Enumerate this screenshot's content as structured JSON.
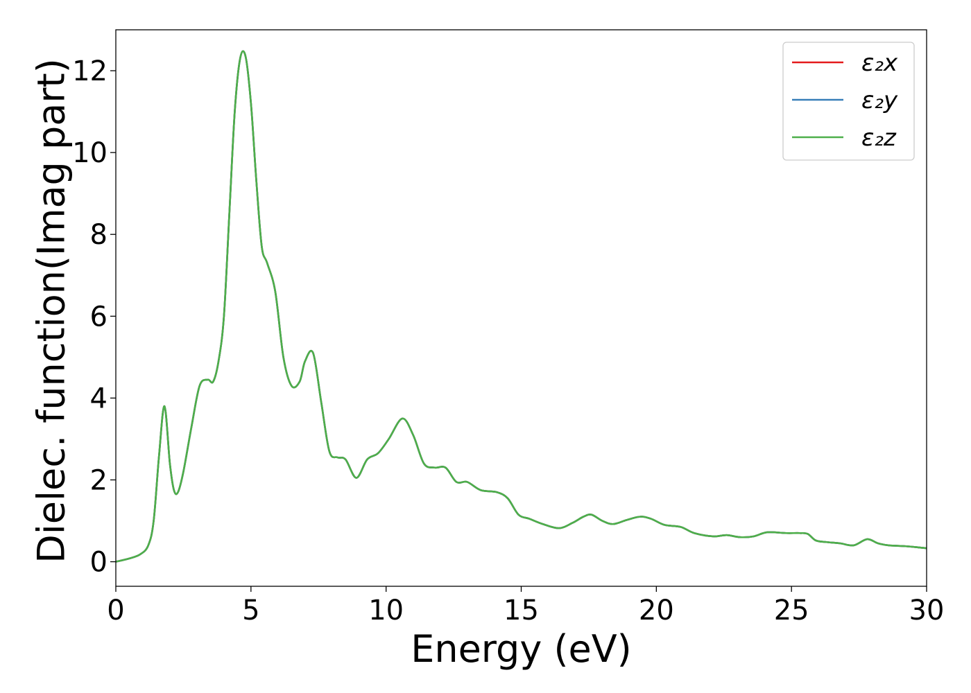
{
  "chart_data": {
    "type": "line",
    "title": "",
    "xlabel": "Energy (eV)",
    "ylabel": "Dielec. function(Imag part)",
    "xlim": [
      0,
      30
    ],
    "ylim": [
      -0.6,
      13.0
    ],
    "xticks": [
      0,
      5,
      10,
      15,
      20,
      25,
      30
    ],
    "xtick_labels": [
      "0",
      "5",
      "10",
      "15",
      "20",
      "25",
      "30"
    ],
    "yticks": [
      0,
      2,
      4,
      6,
      8,
      10,
      12
    ],
    "ytick_labels": [
      "0",
      "2",
      "4",
      "6",
      "8",
      "10",
      "12"
    ],
    "grid": false,
    "legend_position": "top-right",
    "x": [
      0,
      0.5,
      0.9,
      1.2,
      1.4,
      1.6,
      1.8,
      2.0,
      2.15,
      2.3,
      2.5,
      2.8,
      3.1,
      3.4,
      3.6,
      3.8,
      4.0,
      4.2,
      4.4,
      4.6,
      4.8,
      5.0,
      5.2,
      5.4,
      5.6,
      5.9,
      6.2,
      6.5,
      6.8,
      7.0,
      7.3,
      7.6,
      7.9,
      8.2,
      8.5,
      8.9,
      9.3,
      9.7,
      10.1,
      10.6,
      11.0,
      11.4,
      11.8,
      12.2,
      12.6,
      13.0,
      13.5,
      14.1,
      14.5,
      14.9,
      15.3,
      15.8,
      16.4,
      16.9,
      17.3,
      17.6,
      18.0,
      18.4,
      18.9,
      19.4,
      19.8,
      20.3,
      20.9,
      21.4,
      22.1,
      22.6,
      23.1,
      23.6,
      24.1,
      24.8,
      25.3,
      25.6,
      25.9,
      26.3,
      26.8,
      27.3,
      27.8,
      28.2,
      28.6,
      29.2,
      29.7,
      30
    ],
    "series": [
      {
        "name": "ε₂x",
        "color": "#e41a1c",
        "values": [
          0.0,
          0.08,
          0.18,
          0.4,
          1.0,
          2.6,
          3.8,
          2.4,
          1.75,
          1.7,
          2.2,
          3.3,
          4.3,
          4.45,
          4.4,
          4.9,
          6.0,
          8.5,
          11.0,
          12.3,
          12.35,
          11.2,
          9.3,
          7.7,
          7.3,
          6.6,
          5.0,
          4.3,
          4.4,
          4.9,
          5.1,
          3.9,
          2.7,
          2.55,
          2.5,
          2.05,
          2.5,
          2.65,
          3.0,
          3.5,
          3.1,
          2.4,
          2.3,
          2.3,
          1.95,
          1.95,
          1.75,
          1.7,
          1.55,
          1.15,
          1.05,
          0.92,
          0.82,
          0.95,
          1.1,
          1.15,
          1.0,
          0.92,
          1.02,
          1.1,
          1.05,
          0.9,
          0.85,
          0.7,
          0.62,
          0.65,
          0.6,
          0.62,
          0.72,
          0.7,
          0.7,
          0.68,
          0.52,
          0.48,
          0.45,
          0.4,
          0.55,
          0.45,
          0.4,
          0.38,
          0.35,
          0.33
        ]
      },
      {
        "name": "ε₂y",
        "color": "#377eb8",
        "values": [
          0.0,
          0.08,
          0.18,
          0.4,
          1.0,
          2.6,
          3.8,
          2.4,
          1.75,
          1.7,
          2.2,
          3.3,
          4.3,
          4.45,
          4.4,
          4.9,
          6.0,
          8.5,
          11.0,
          12.3,
          12.35,
          11.2,
          9.3,
          7.7,
          7.3,
          6.6,
          5.0,
          4.3,
          4.4,
          4.9,
          5.1,
          3.9,
          2.7,
          2.55,
          2.5,
          2.05,
          2.5,
          2.65,
          3.0,
          3.5,
          3.1,
          2.4,
          2.3,
          2.3,
          1.95,
          1.95,
          1.75,
          1.7,
          1.55,
          1.15,
          1.05,
          0.92,
          0.82,
          0.95,
          1.1,
          1.15,
          1.0,
          0.92,
          1.02,
          1.1,
          1.05,
          0.9,
          0.85,
          0.7,
          0.62,
          0.65,
          0.6,
          0.62,
          0.72,
          0.7,
          0.7,
          0.68,
          0.52,
          0.48,
          0.45,
          0.4,
          0.55,
          0.45,
          0.4,
          0.38,
          0.35,
          0.33
        ]
      },
      {
        "name": "ε₂z",
        "color": "#4daf4a",
        "values": [
          0.0,
          0.08,
          0.18,
          0.4,
          1.0,
          2.6,
          3.8,
          2.4,
          1.75,
          1.7,
          2.2,
          3.3,
          4.3,
          4.45,
          4.4,
          4.9,
          6.0,
          8.5,
          11.0,
          12.3,
          12.35,
          11.2,
          9.3,
          7.7,
          7.3,
          6.6,
          5.0,
          4.3,
          4.4,
          4.9,
          5.1,
          3.9,
          2.7,
          2.55,
          2.5,
          2.05,
          2.5,
          2.65,
          3.0,
          3.5,
          3.1,
          2.4,
          2.3,
          2.3,
          1.95,
          1.95,
          1.75,
          1.7,
          1.55,
          1.15,
          1.05,
          0.92,
          0.82,
          0.95,
          1.1,
          1.15,
          1.0,
          0.92,
          1.02,
          1.1,
          1.05,
          0.9,
          0.85,
          0.7,
          0.62,
          0.65,
          0.6,
          0.62,
          0.72,
          0.7,
          0.7,
          0.68,
          0.52,
          0.48,
          0.45,
          0.4,
          0.55,
          0.45,
          0.4,
          0.38,
          0.35,
          0.33
        ]
      }
    ]
  }
}
